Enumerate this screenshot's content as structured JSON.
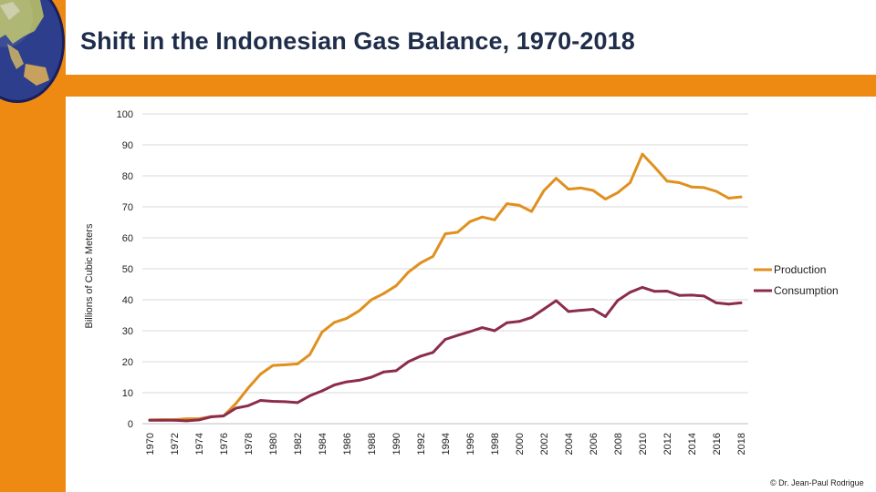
{
  "title": "Shift in the Indonesian Gas Balance, 1970-2018",
  "footer": "© Dr. Jean-Paul Rodrigue",
  "colors": {
    "accent": "#ee8a12",
    "production": "#e0901e",
    "consumption": "#8b2d4a",
    "title": "#1f2d4a"
  },
  "icons": {
    "corner": "globe-asia-icon"
  },
  "chart_data": {
    "type": "line",
    "title": "",
    "xlabel": "",
    "ylabel": "Billions of Cubic Meters",
    "ylim": [
      0,
      100
    ],
    "yticks": [
      0,
      10,
      20,
      30,
      40,
      50,
      60,
      70,
      80,
      90,
      100
    ],
    "grid": true,
    "legend": "right",
    "x": [
      1970,
      1971,
      1972,
      1973,
      1974,
      1975,
      1976,
      1977,
      1978,
      1979,
      1980,
      1981,
      1982,
      1983,
      1984,
      1985,
      1986,
      1987,
      1988,
      1989,
      1990,
      1991,
      1992,
      1993,
      1994,
      1995,
      1996,
      1997,
      1998,
      1999,
      2000,
      2001,
      2002,
      2003,
      2004,
      2005,
      2006,
      2007,
      2008,
      2009,
      2010,
      2011,
      2012,
      2013,
      2014,
      2015,
      2016,
      2017,
      2018
    ],
    "xticks": [
      1970,
      1972,
      1974,
      1976,
      1978,
      1980,
      1982,
      1984,
      1986,
      1988,
      1990,
      1992,
      1994,
      1996,
      1998,
      2000,
      2002,
      2004,
      2006,
      2008,
      2010,
      2012,
      2014,
      2016,
      2018
    ],
    "series": [
      {
        "name": "Production",
        "values": [
          1.2,
          1.3,
          1.3,
          1.6,
          1.6,
          2.3,
          2.5,
          6.5,
          11.5,
          16,
          18.8,
          19,
          19.3,
          22.3,
          29.6,
          32.7,
          34,
          36.4,
          40,
          42,
          44.5,
          48.9,
          51.9,
          54,
          61.3,
          61.8,
          65.2,
          66.7,
          65.8,
          71,
          70.5,
          68.5,
          75.2,
          79.2,
          75.7,
          76.1,
          75.3,
          72.5,
          74.6,
          77.8,
          87,
          82.8,
          78.3,
          77.8,
          76.4,
          76.2,
          75,
          72.8,
          73.2
        ]
      },
      {
        "name": "Consumption",
        "values": [
          1.1,
          1.1,
          1.1,
          0.9,
          1.2,
          2.2,
          2.5,
          5,
          5.8,
          7.5,
          7.2,
          7.1,
          6.8,
          9,
          10.6,
          12.5,
          13.5,
          14,
          15,
          16.7,
          17.1,
          20,
          21.8,
          23,
          27.2,
          28.5,
          29.7,
          31,
          30,
          32.6,
          33,
          34.3,
          37,
          39.7,
          36.2,
          36.6,
          36.9,
          34.6,
          39.8,
          42.4,
          44,
          42.7,
          42.8,
          41.4,
          41.5,
          41.2,
          39,
          38.6,
          39
        ]
      }
    ]
  }
}
